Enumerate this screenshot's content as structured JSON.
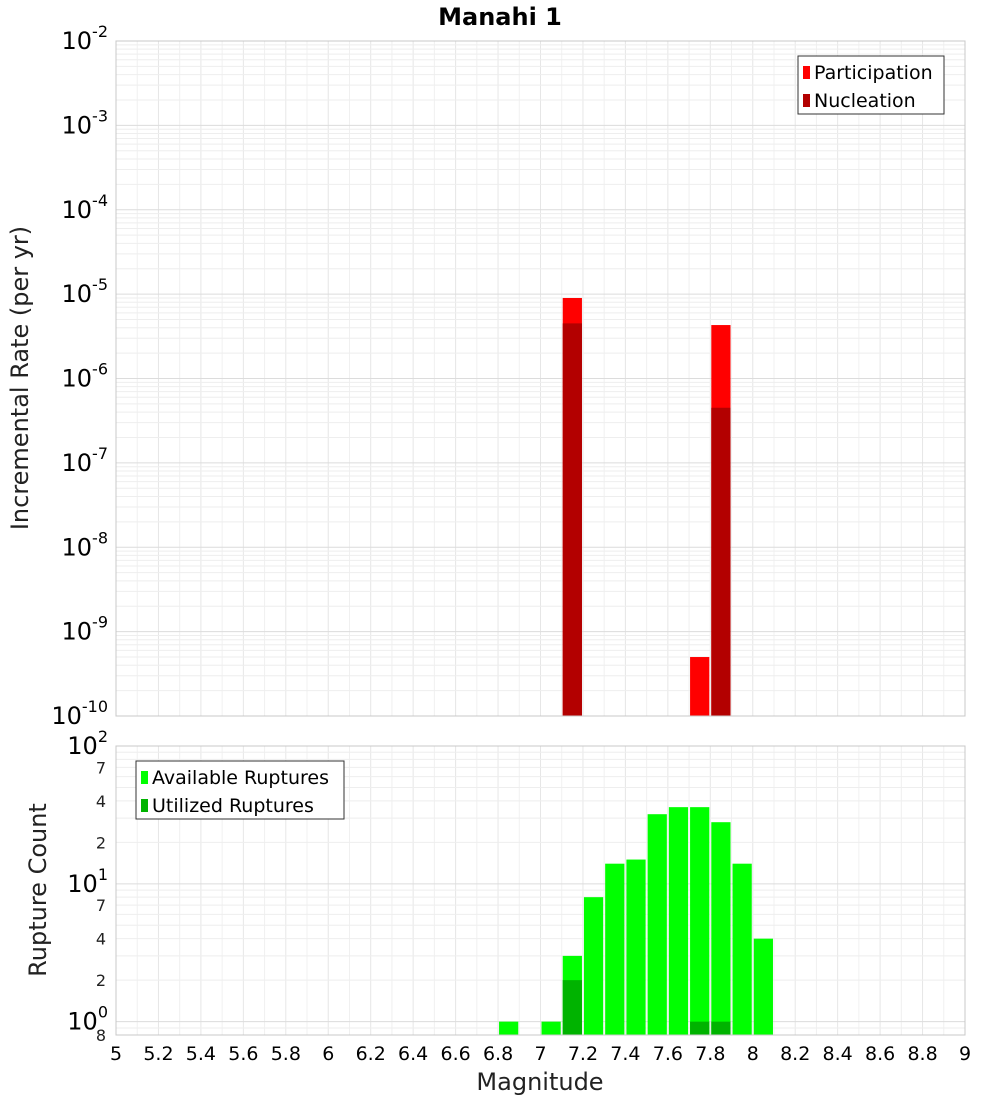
{
  "chart_data": [
    {
      "type": "bar",
      "title": "Manahi 1",
      "ylabel": "Incremental Rate (per yr)",
      "yscale": "log",
      "ylim": [
        1e-10,
        0.01
      ],
      "xlim": [
        5,
        9
      ],
      "legend_position": "top-right",
      "grid": true,
      "y_ticks": [
        {
          "base": "10",
          "exp": "-10",
          "value": 1e-10
        },
        {
          "base": "10",
          "exp": "-9",
          "value": 1e-09
        },
        {
          "base": "10",
          "exp": "-8",
          "value": 1e-08
        },
        {
          "base": "10",
          "exp": "-7",
          "value": 1e-07
        },
        {
          "base": "10",
          "exp": "-6",
          "value": 1e-06
        },
        {
          "base": "10",
          "exp": "-5",
          "value": 1e-05
        },
        {
          "base": "10",
          "exp": "-4",
          "value": 0.0001
        },
        {
          "base": "10",
          "exp": "-3",
          "value": 0.001
        },
        {
          "base": "10",
          "exp": "-2",
          "value": 0.01
        }
      ],
      "series": [
        {
          "name": "Participation",
          "color": "#ff0000",
          "points": [
            {
              "x": 7.15,
              "y": 9e-06
            },
            {
              "x": 7.75,
              "y": 5e-10
            },
            {
              "x": 7.85,
              "y": 4.3e-06
            }
          ]
        },
        {
          "name": "Nucleation",
          "color": "#b30000",
          "points": [
            {
              "x": 7.15,
              "y": 4.5e-06
            },
            {
              "x": 7.85,
              "y": 4.5e-07
            }
          ]
        }
      ]
    },
    {
      "type": "bar",
      "ylabel": "Rupture Count",
      "xlabel": "Magnitude",
      "yscale": "log",
      "ylim": [
        0.8,
        100
      ],
      "xlim": [
        5,
        9
      ],
      "legend_position": "top-left",
      "grid": true,
      "y_ticks": [
        {
          "base": "10",
          "exp": "0",
          "value": 1
        },
        {
          "base": "10",
          "exp": "1",
          "value": 10
        },
        {
          "base": "10",
          "exp": "2",
          "value": 100
        }
      ],
      "y_minor_ticks": [
        {
          "label": "8",
          "value": 0.8
        },
        {
          "label": "2",
          "value": 2
        },
        {
          "label": "4",
          "value": 4
        },
        {
          "label": "7",
          "value": 7
        },
        {
          "label": "2",
          "value": 20
        },
        {
          "label": "4",
          "value": 40
        },
        {
          "label": "7",
          "value": 70
        }
      ],
      "x_ticks": [
        "5",
        "5.2",
        "5.4",
        "5.6",
        "5.8",
        "6",
        "6.2",
        "6.4",
        "6.6",
        "6.8",
        "7",
        "7.2",
        "7.4",
        "7.6",
        "7.8",
        "8",
        "8.2",
        "8.4",
        "8.6",
        "8.8",
        "9"
      ],
      "series": [
        {
          "name": "Available Ruptures",
          "color": "#00ff00",
          "points": [
            {
              "x": 6.85,
              "y": 1
            },
            {
              "x": 7.05,
              "y": 1
            },
            {
              "x": 7.15,
              "y": 3
            },
            {
              "x": 7.25,
              "y": 8
            },
            {
              "x": 7.35,
              "y": 14
            },
            {
              "x": 7.45,
              "y": 15
            },
            {
              "x": 7.55,
              "y": 32
            },
            {
              "x": 7.65,
              "y": 36
            },
            {
              "x": 7.75,
              "y": 36
            },
            {
              "x": 7.85,
              "y": 28
            },
            {
              "x": 7.95,
              "y": 14
            },
            {
              "x": 8.05,
              "y": 4
            }
          ]
        },
        {
          "name": "Utilized Ruptures",
          "color": "#00b300",
          "points": [
            {
              "x": 7.15,
              "y": 2
            },
            {
              "x": 7.75,
              "y": 1
            },
            {
              "x": 7.85,
              "y": 1
            }
          ]
        }
      ]
    }
  ]
}
